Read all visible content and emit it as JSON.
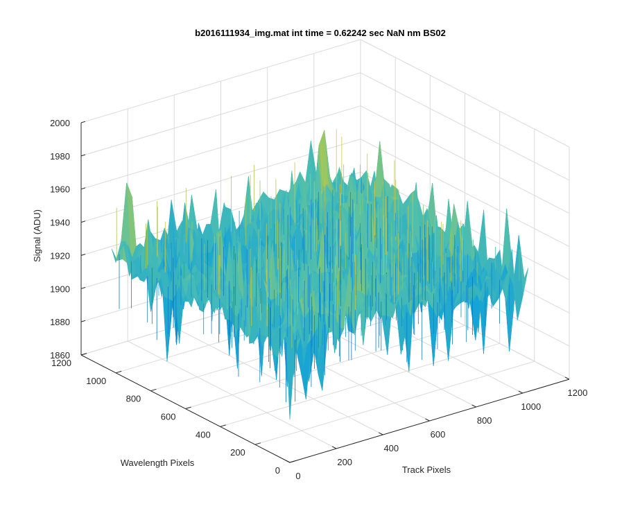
{
  "chart_data": {
    "type": "surface",
    "title": "b2016111934_img.mat int time = 0.62242 sec  NaN nm BS02",
    "xlabel": "Track Pixels",
    "ylabel": "Wavelength Pixels",
    "zlabel": "Signal (ADU)",
    "xlim": [
      0,
      1200
    ],
    "ylim": [
      0,
      1200
    ],
    "zlim": [
      1860,
      2000
    ],
    "x_ticks": [
      "0",
      "200",
      "400",
      "600",
      "800",
      "1000",
      "1200"
    ],
    "y_ticks": [
      "0",
      "200",
      "400",
      "600",
      "800",
      "1000",
      "1200"
    ],
    "z_ticks": [
      "1860",
      "1880",
      "1900",
      "1920",
      "1940",
      "1960",
      "1980",
      "2000"
    ],
    "data_extent": {
      "x": [
        0,
        1024
      ],
      "y": [
        0,
        1024
      ]
    },
    "surface_mean": 1930,
    "surface_range": [
      1870,
      1985
    ],
    "colormap": "parula",
    "grid": true,
    "box": "open-3d"
  },
  "colors": {
    "low": "#0072bd",
    "mid": "#4dbeb0",
    "high": "#e6c23a",
    "grid": "#dadada",
    "axis": "#262626"
  }
}
